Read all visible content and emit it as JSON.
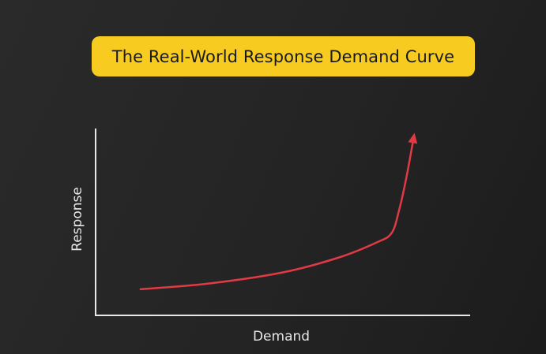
{
  "chart_data": {
    "type": "line",
    "title": "The Real-World Response Demand Curve",
    "xlabel": "Demand",
    "ylabel": "Response",
    "grid": false,
    "legend": "none",
    "ticks": false,
    "xlim": [
      0,
      100
    ],
    "ylim": [
      0,
      100
    ],
    "series": [
      {
        "color": "#e03a45",
        "arrow_end": true,
        "x": [
          12,
          30,
          50,
          65,
          75,
          79,
          81,
          83,
          85
        ],
        "y": [
          14,
          17,
          23,
          31,
          39,
          44,
          56,
          74,
          96
        ]
      }
    ]
  },
  "colors": {
    "background": "#222222",
    "title_bg": "#f7cb1f",
    "axis": "#e8e8e8",
    "curve": "#e03a45"
  }
}
